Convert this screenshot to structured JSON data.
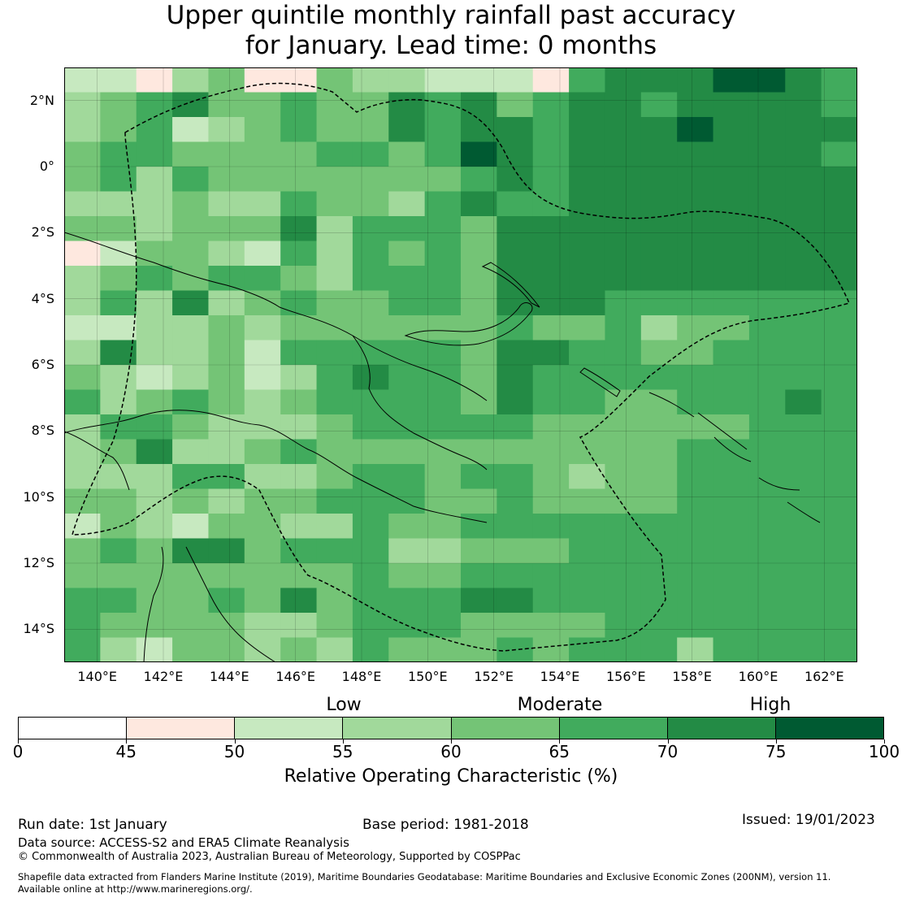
{
  "title": {
    "line1": "Upper quintile monthly rainfall past accuracy",
    "line2": "for January. Lead time: 0 months"
  },
  "map": {
    "lat_ticks": [
      "2°N",
      "0°",
      "2°S",
      "4°S",
      "6°S",
      "8°S",
      "10°S",
      "12°S",
      "14°S"
    ],
    "lat_values": [
      2,
      0,
      -2,
      -4,
      -6,
      -8,
      -10,
      -12,
      -14
    ],
    "lon_ticks": [
      "140°E",
      "142°E",
      "144°E",
      "146°E",
      "148°E",
      "150°E",
      "152°E",
      "154°E",
      "156°E",
      "158°E",
      "160°E",
      "162°E"
    ],
    "lon_values": [
      140,
      142,
      144,
      146,
      148,
      150,
      152,
      154,
      156,
      158,
      160,
      162
    ],
    "extent": {
      "lon_min": 139,
      "lon_max": 163,
      "lat_min": -15,
      "lat_max": 3
    },
    "cell_size_deg": 0.8,
    "grid_rows_note": "each row string: one char per cell, west to east; rows north to south; digit = colour class index",
    "grid_rows": [
      "2213411433222156667765",
      "3456445446564566566665",
      "3452345446566566676666",
      "4554444554576566666665",
      "4535444444456566666666",
      "3334335443565566666666",
      "4434446355546666666666",
      "1244325354546666666666",
      "3454554355546666666666",
      "3536345445546665555555",
      "2233434444445445344555",
      "3633425555546655445555",
      "4323423565546555555555",
      "5345434555546554455565",
      "3554333455555444444555",
      "3463345444444444455555",
      "3335533455455434455555",
      "4434344555445444455555",
      "2432443354455555555555",
      "4546645553344455555555",
      "4444444454455555555555",
      "5544546455566555555555",
      "5444433455544445555555",
      "5324434354445455535555"
    ],
    "colors": {
      "c0": "#ffffff",
      "c1": "#fee8df",
      "c2": "#c7e9c0",
      "c3": "#a1d99b",
      "c4": "#74c476",
      "c5": "#41ab5d",
      "c6": "#238b45",
      "c7": "#005a32"
    }
  },
  "colorbar": {
    "categories": [
      "Low",
      "Moderate",
      "High"
    ],
    "ticks": [
      "0",
      "45",
      "50",
      "55",
      "60",
      "65",
      "70",
      "75",
      "100"
    ],
    "segment_colors": [
      "#ffffff",
      "#fee8df",
      "#c7e9c0",
      "#a1d99b",
      "#74c476",
      "#41ab5d",
      "#238b45",
      "#005a32"
    ],
    "label": "Relative Operating Characteristic (%)"
  },
  "footer": {
    "run_date": "Run date: 1st January",
    "base_period": "Base period: 1981-2018",
    "issued": "Issued: 19/01/2023",
    "data_source": "Data source: ACCESS-S2 and ERA5 Climate Reanalysis",
    "copyright": "© Commonwealth of Australia 2023, Australian Bureau of Meteorology, Supported by COSPPac",
    "shapefile_line1": "Shapefile data extracted from Flanders Marine Institute (2019), Maritime Boundaries Geodatabase: Maritime Boundaries and Exclusive Economic Zones (200NM), version 11.",
    "shapefile_line2": "Available online at http://www.marineregions.org/."
  }
}
